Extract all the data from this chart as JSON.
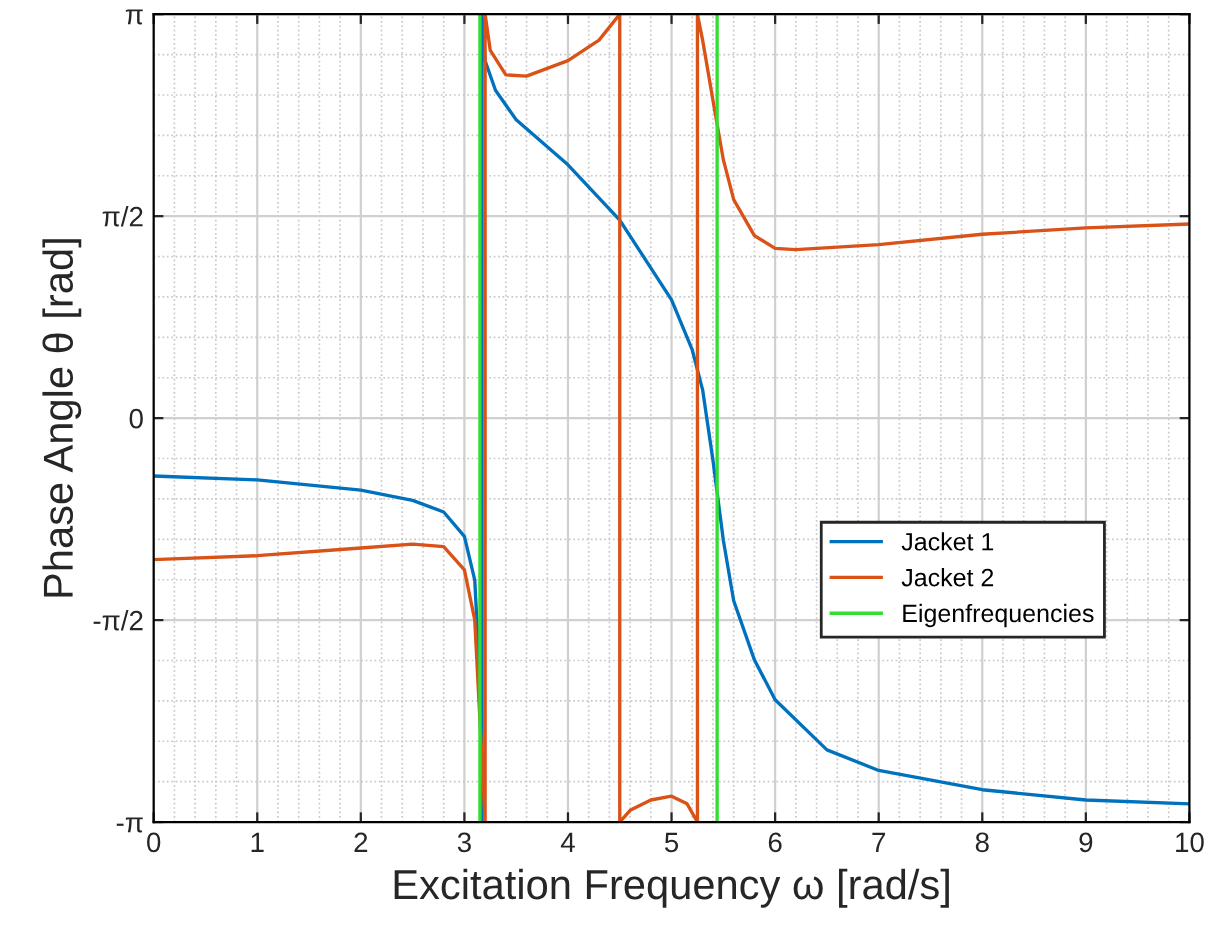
{
  "chart_data": {
    "type": "line",
    "xlabel": "Excitation Frequency ω [rad/s]",
    "ylabel": "Phase Angle θ [rad]",
    "xlim": [
      0,
      10
    ],
    "xticks": [
      0,
      1,
      2,
      3,
      4,
      5,
      6,
      7,
      8,
      9,
      10
    ],
    "ylim": [
      -3.1416,
      3.1416
    ],
    "yticks": [
      {
        "value": -3.1416,
        "label": "-π"
      },
      {
        "value": -1.5708,
        "label": "-π/2"
      },
      {
        "value": 0,
        "label": "0"
      },
      {
        "value": 1.5708,
        "label": "π/2"
      },
      {
        "value": 3.1416,
        "label": "π"
      }
    ],
    "grid": true,
    "legend": "right",
    "series": [
      {
        "name": "Jacket 1",
        "color": "#0072bd",
        "x": [
          0,
          1,
          2,
          2.5,
          2.8,
          3,
          3.1,
          3.15,
          3.17,
          3.17,
          3.2,
          3.3,
          3.5,
          4,
          4.5,
          5,
          5.2,
          5.3,
          5.4,
          5.5,
          5.6,
          5.8,
          6,
          6.5,
          7,
          8,
          9,
          10
        ],
        "values": [
          -0.45,
          -0.48,
          -0.56,
          -0.64,
          -0.73,
          -0.92,
          -1.26,
          -2.04,
          -3.1416,
          3.1416,
          2.78,
          2.55,
          2.32,
          1.97,
          1.54,
          0.92,
          0.53,
          0.22,
          -0.33,
          -0.95,
          -1.42,
          -1.88,
          -2.19,
          -2.58,
          -2.74,
          -2.89,
          -2.97,
          -3.0
        ]
      },
      {
        "name": "Jacket 2",
        "color": "#d95319",
        "x": [
          0,
          1,
          2,
          2.5,
          2.8,
          3,
          3.1,
          3.15,
          3.2,
          3.2,
          3.25,
          3.4,
          3.6,
          4,
          4.3,
          4.5,
          4.5,
          4.6,
          4.8,
          5.0,
          5.15,
          5.25,
          5.25,
          5.3,
          5.4,
          5.5,
          5.6,
          5.8,
          6,
          6.2,
          7,
          8,
          9,
          10
        ],
        "values": [
          -1.1,
          -1.07,
          -1.01,
          -0.98,
          -1.0,
          -1.18,
          -1.57,
          -2.35,
          -3.1416,
          3.1416,
          2.86,
          2.67,
          2.66,
          2.78,
          2.94,
          3.1416,
          -3.1416,
          -3.05,
          -2.97,
          -2.94,
          -3.0,
          -3.1416,
          3.1416,
          2.94,
          2.47,
          2.01,
          1.7,
          1.42,
          1.32,
          1.31,
          1.35,
          1.43,
          1.48,
          1.51
        ]
      },
      {
        "name": "Eigenfrequencies",
        "color": "#33dd33",
        "x": [
          3.15,
          3.15,
          null,
          5.44,
          5.44
        ],
        "values": [
          -3.14,
          3.14,
          null,
          -3.14,
          3.14
        ]
      }
    ]
  }
}
